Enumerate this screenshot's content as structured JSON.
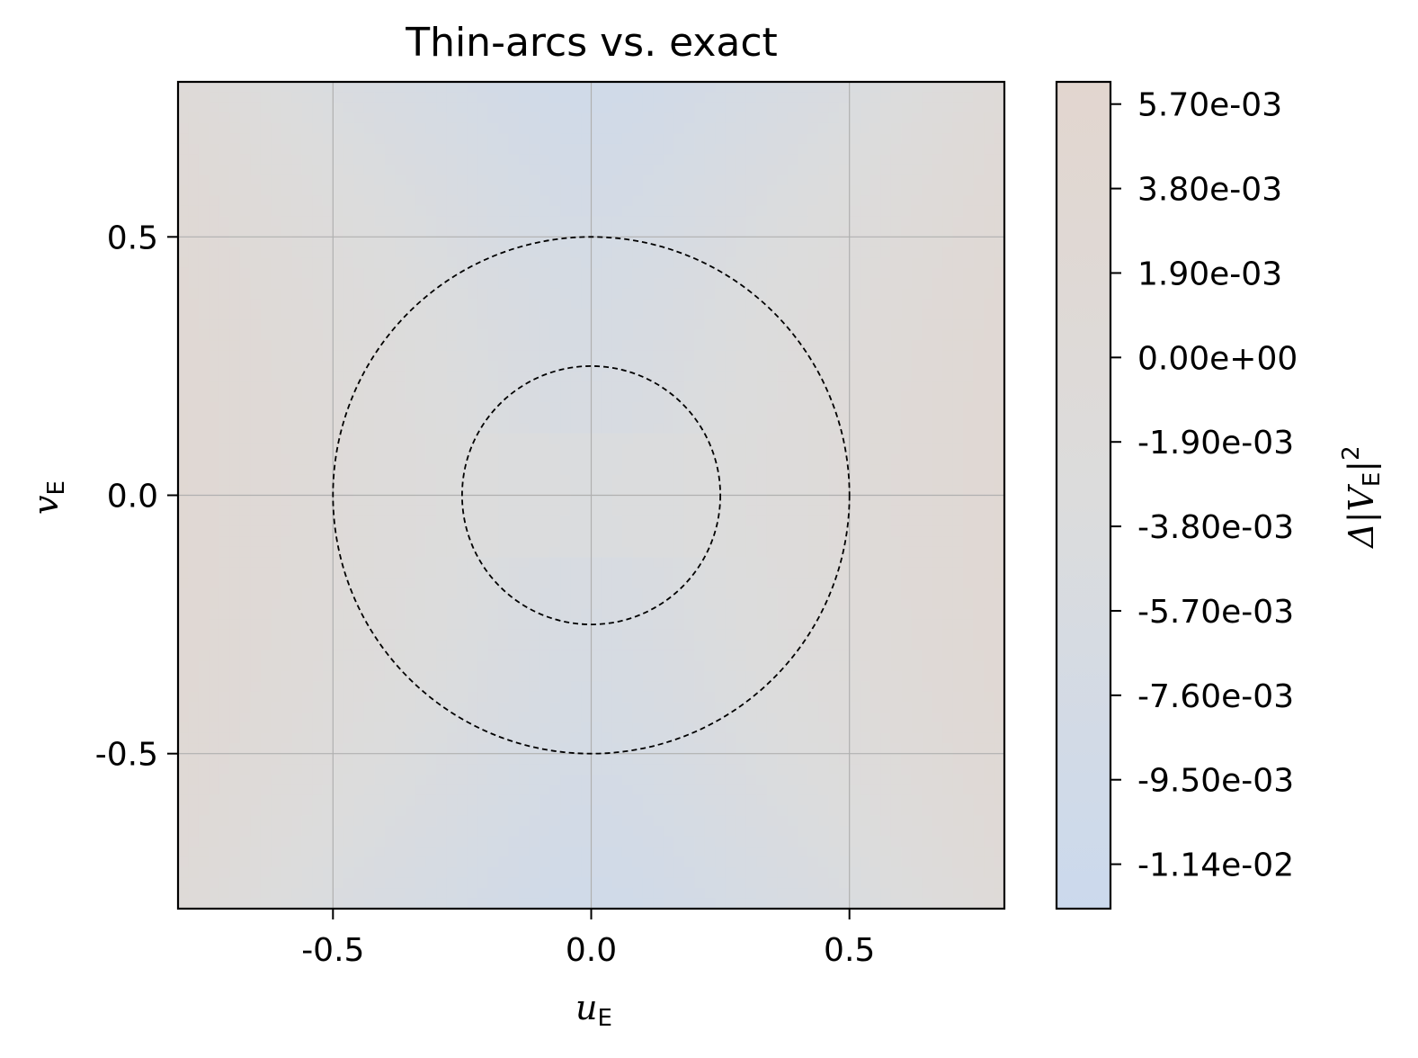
{
  "chart_data": {
    "type": "heatmap",
    "title": "Thin-arcs vs. exact",
    "xlabel": {
      "main": "u",
      "sub": "E"
    },
    "ylabel": {
      "main": "v",
      "sub": "E"
    },
    "xlim": [
      -0.8,
      0.8
    ],
    "ylim": [
      -0.8,
      0.8
    ],
    "xticks": [
      -0.5,
      0.0,
      0.5
    ],
    "yticks": [
      -0.5,
      0.0,
      0.5
    ],
    "xtick_labels": [
      "-0.5",
      "0.0",
      "0.5"
    ],
    "ytick_labels": [
      "-0.5",
      "0.0",
      "0.5"
    ],
    "grid": true,
    "colormap": {
      "low": "#cbd9ed",
      "mid": "#dcdcdc",
      "high": "#e2d6cf"
    },
    "colorbar": {
      "label": {
        "prefix": "Δ|V",
        "sub": "E",
        "suffix": "|",
        "sup": "2"
      },
      "range": [
        -0.0124,
        0.0062
      ],
      "ticks": [
        0.0057,
        0.0038,
        0.0019,
        0.0,
        -0.0019,
        -0.0038,
        -0.0057,
        -0.0076,
        -0.0095,
        -0.0114
      ],
      "tick_labels": [
        "5.70e-03",
        "3.80e-03",
        "1.90e-03",
        "0.00e+00",
        "-1.90e-03",
        "-3.80e-03",
        "-5.70e-03",
        "-7.60e-03",
        "-9.50e-03",
        "-1.14e-02"
      ]
    },
    "circles": [
      {
        "center": [
          0.0,
          0.0
        ],
        "radius": 0.25,
        "style": "dashed"
      },
      {
        "center": [
          0.0,
          0.0
        ],
        "radius": 0.5,
        "style": "dashed"
      }
    ]
  }
}
